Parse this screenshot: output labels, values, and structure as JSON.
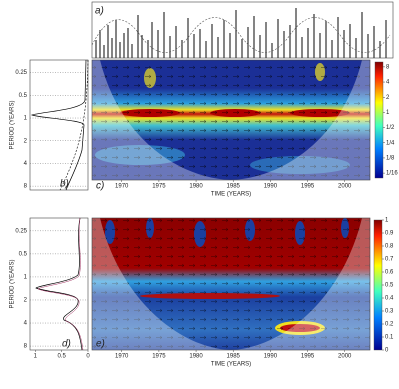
{
  "chart_data": [
    {
      "type": "line",
      "panel": "a)"
    },
    {
      "type": "line",
      "panel": "b)",
      "ylabel": "PERIOD (YEARS)",
      "ylog": true,
      "ylim": [
        0.17,
        9
      ],
      "yticks": [
        0.25,
        0.5,
        1,
        2,
        4,
        8
      ],
      "grid": true
    },
    {
      "type": "heatmap",
      "panel": "c)",
      "xlabel": "TIME (YEARS)",
      "xlim": [
        1966,
        2003.4
      ],
      "xticks": [
        1970,
        1975,
        1980,
        1985,
        1990,
        1995,
        2000
      ],
      "clog": true,
      "clim": [
        0.05,
        10
      ],
      "cticks": [
        8,
        4,
        2,
        1,
        {
          "value": 0.5,
          "label": "1/2"
        },
        {
          "value": 0.25,
          "label": "1/4"
        },
        {
          "value": 0.125,
          "label": "1/8"
        },
        {
          "value": 0.0625,
          "label": "1/16"
        }
      ]
    },
    {
      "type": "line",
      "panel": "d)",
      "ylabel": "PERIOD (YEARS)",
      "ylog": true,
      "ylim": [
        0.17,
        9
      ],
      "yticks": [
        0.25,
        0.5,
        1,
        2,
        4,
        8
      ],
      "grid": true,
      "xlim": [
        1.1,
        0
      ],
      "xticks": [
        1,
        0.5,
        0
      ]
    },
    {
      "type": "heatmap",
      "panel": "e)",
      "xlabel": "TIME (YEARS)",
      "xlim": [
        1966,
        2003.4
      ],
      "xticks": [
        1970,
        1975,
        1980,
        1985,
        1990,
        1995,
        2000
      ],
      "clim": [
        0,
        1
      ],
      "cticks": [
        0,
        0.1,
        0.2,
        0.3,
        0.4,
        0.5,
        0.6,
        0.7,
        0.8,
        0.9,
        1
      ]
    }
  ]
}
